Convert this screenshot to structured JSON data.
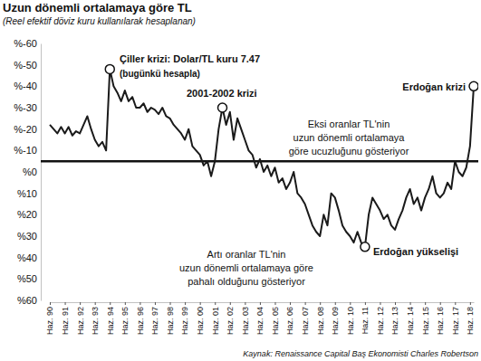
{
  "chart_data": {
    "type": "line",
    "title": "Uzun dönemli ortalamaya göre TL",
    "subtitle": "(Reel efektif döviz kuru kullanılarak hesaplanan)",
    "source": "Kaynak: Renaissance Capital Baş Ekonomisti Charles Robertson",
    "categories": [
      "Haz. 90",
      null,
      null,
      null,
      "Haz. 91",
      null,
      null,
      null,
      "Haz. 92",
      null,
      null,
      null,
      "Haz. 93",
      null,
      null,
      null,
      "Haz. 94",
      null,
      null,
      null,
      "Haz. 95",
      null,
      null,
      null,
      "Haz. 96",
      null,
      null,
      null,
      "Haz. 97",
      null,
      null,
      null,
      "Haz. 98",
      null,
      null,
      null,
      "Haz. 99",
      null,
      null,
      null,
      "Haz. 00",
      null,
      null,
      null,
      "Haz. 01",
      null,
      null,
      null,
      "Haz. 02",
      null,
      null,
      null,
      "Haz. 03",
      null,
      null,
      null,
      "Haz. 04",
      null,
      null,
      null,
      "Haz. 05",
      null,
      null,
      null,
      "Haz. 06",
      null,
      null,
      null,
      "Haz. 07",
      null,
      null,
      null,
      "Haz. 08",
      null,
      null,
      null,
      "Haz. 09",
      null,
      null,
      null,
      "Haz. 10",
      null,
      null,
      null,
      "Haz. 11",
      null,
      null,
      null,
      "Haz. 12",
      null,
      null,
      null,
      "Haz. 13",
      null,
      null,
      null,
      "Haz. 14",
      null,
      null,
      null,
      "Haz. 15",
      null,
      null,
      null,
      "Haz. 16",
      null,
      null,
      null,
      "Haz. 17",
      null,
      null,
      null,
      "Haz. 18",
      null
    ],
    "values": [
      -22,
      -20,
      -18,
      -21,
      -18,
      -21,
      -17,
      -19,
      -18,
      -22,
      -26,
      -20,
      -15,
      -12,
      -14,
      -10,
      -48,
      -40,
      -37,
      -33,
      -38,
      -33,
      -35,
      -30,
      -30,
      -32,
      -28,
      -30,
      -29,
      -27,
      -30,
      -26,
      -25,
      -22,
      -20,
      -18,
      -15,
      -20,
      -12,
      -10,
      -8,
      -3,
      -5,
      2,
      -5,
      -20,
      -30,
      -22,
      -28,
      -15,
      -25,
      -20,
      -15,
      -10,
      -8,
      -2,
      -6,
      0,
      -3,
      2,
      -2,
      5,
      3,
      8,
      5,
      0,
      10,
      12,
      15,
      20,
      25,
      28,
      30,
      20,
      25,
      10,
      12,
      18,
      25,
      28,
      30,
      33,
      28,
      33,
      35,
      20,
      12,
      15,
      18,
      22,
      20,
      25,
      27,
      22,
      18,
      12,
      8,
      15,
      12,
      18,
      12,
      8,
      2,
      10,
      12,
      10,
      5,
      8,
      -5,
      0,
      2,
      -2,
      -12,
      -40
    ],
    "color": "#1a1a1a",
    "ylim": [
      60,
      -60
    ],
    "yticks": [
      {
        "value": -60,
        "label": "%-60"
      },
      {
        "value": -50,
        "label": "%-50"
      },
      {
        "value": -40,
        "label": "%-40"
      },
      {
        "value": -30,
        "label": "%-30"
      },
      {
        "value": -20,
        "label": "%-20"
      },
      {
        "value": -10,
        "label": "%-10"
      },
      {
        "value": 0,
        "label": "%0"
      },
      {
        "value": 10,
        "label": "%10"
      },
      {
        "value": 20,
        "label": "%20"
      },
      {
        "value": 30,
        "label": "%30"
      },
      {
        "value": 40,
        "label": "%40"
      },
      {
        "value": 50,
        "label": "%50"
      },
      {
        "value": 60,
        "label": "%60"
      }
    ],
    "reference_line": -5,
    "grid": false,
    "annotations": [
      {
        "lines": [
          "Çiller krizi: Dolar/TL kuru 7.47",
          "(bugünkü hesapla)"
        ]
      },
      {
        "lines": [
          "2001-2002 krizi"
        ]
      },
      {
        "lines": [
          "Eksi oranlar TL'nin",
          "uzun dönemli ortalamaya",
          "göre ucuzluğunu gösteriyor"
        ]
      },
      {
        "lines": [
          "Erdoğan krizi"
        ]
      },
      {
        "lines": [
          "Erdoğan yükselişi"
        ]
      },
      {
        "lines": [
          "Artı oranlar TL'nin",
          "uzun dönemli ortalamaya göre",
          "pahalı olduğunu gösteriyor"
        ]
      }
    ]
  }
}
